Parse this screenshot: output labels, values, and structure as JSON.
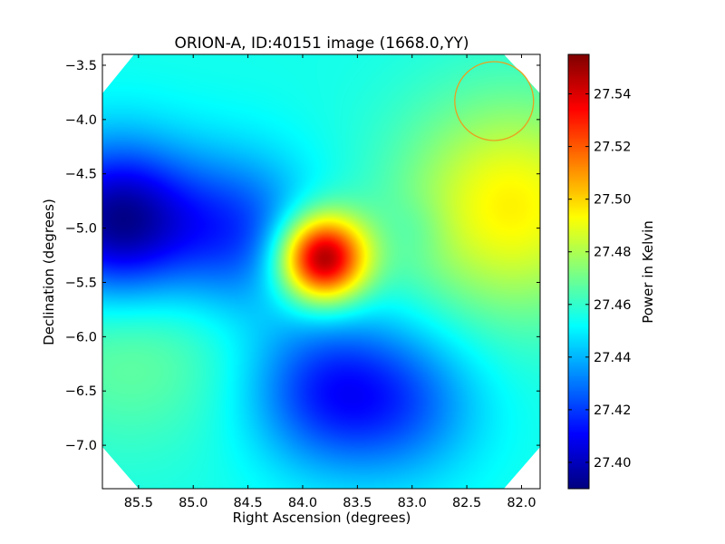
{
  "chart_data": {
    "type": "heatmap",
    "title": "ORION-A, ID:40151 image (1668.0,YY)",
    "xlabel": "Right Ascension (degrees)",
    "ylabel": "Declination (degrees)",
    "colorbar_label": "Power in Kelvin",
    "colormap": "jet",
    "xlim": [
      85.83,
      81.83
    ],
    "ylim": [
      -7.4,
      -3.4
    ],
    "x_ticks": [
      85.5,
      85.0,
      84.5,
      84.0,
      83.5,
      83.0,
      82.5,
      82.0
    ],
    "x_tick_labels": [
      "85.5",
      "85.0",
      "84.5",
      "84.0",
      "83.5",
      "83.0",
      "82.5",
      "82.0"
    ],
    "y_ticks": [
      -3.5,
      -4.0,
      -4.5,
      -5.0,
      -5.5,
      -6.0,
      -6.5,
      -7.0
    ],
    "y_tick_labels": [
      "−3.5",
      "−4.0",
      "−4.5",
      "−5.0",
      "−5.5",
      "−6.0",
      "−6.5",
      "−7.0"
    ],
    "color_range": [
      27.39,
      27.555
    ],
    "colorbar_ticks": [
      27.4,
      27.42,
      27.44,
      27.46,
      27.48,
      27.5,
      27.52,
      27.54
    ],
    "colorbar_tick_labels": [
      "27.40",
      "27.42",
      "27.44",
      "27.46",
      "27.48",
      "27.50",
      "27.52",
      "27.54"
    ],
    "beam_circle": {
      "ra": 82.25,
      "dec": -3.83,
      "radius_deg": 0.36,
      "color": "#e8a020"
    },
    "background_level": 27.455,
    "features": [
      {
        "kind": "hot spot",
        "ra": 83.82,
        "dec": -5.28,
        "value": 27.555
      },
      {
        "kind": "cold region",
        "ra": 85.7,
        "dec": -4.95,
        "value": 27.39
      },
      {
        "kind": "cold region",
        "ra": 84.6,
        "dec": -5.05,
        "value": 27.42
      },
      {
        "kind": "cold region",
        "ra": 83.8,
        "dec": -6.5,
        "value": 27.42
      },
      {
        "kind": "cold region",
        "ra": 83.05,
        "dec": -6.6,
        "value": 27.43
      },
      {
        "kind": "warm region",
        "ra": 82.1,
        "dec": -4.8,
        "value": 27.495
      },
      {
        "kind": "warm region",
        "ra": 85.55,
        "dec": -6.0,
        "value": 27.47
      },
      {
        "kind": "cool spot",
        "ra": 82.95,
        "dec": -5.0,
        "value": 27.45
      }
    ]
  }
}
